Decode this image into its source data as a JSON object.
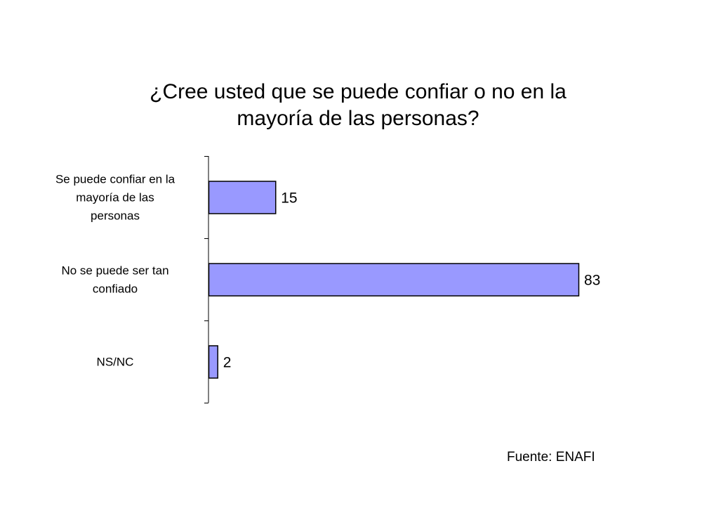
{
  "chart_data": {
    "type": "bar",
    "orientation": "horizontal",
    "title_lines": [
      "¿Cree usted que se puede confiar o no en la",
      "mayoría de las personas?"
    ],
    "categories": [
      [
        "Se puede confiar en la",
        "mayoría de las",
        "personas"
      ],
      [
        "No se puede ser tan",
        "confiado"
      ],
      [
        "NS/NC"
      ]
    ],
    "values": [
      15,
      83,
      2
    ],
    "data_labels": [
      "15",
      "83",
      "2"
    ],
    "xlim": [
      0,
      83
    ],
    "grid": false,
    "legend": "none",
    "bar_color": "#9999ff",
    "bar_border_color": "#000000"
  },
  "source_note": "Fuente: ENAFI"
}
